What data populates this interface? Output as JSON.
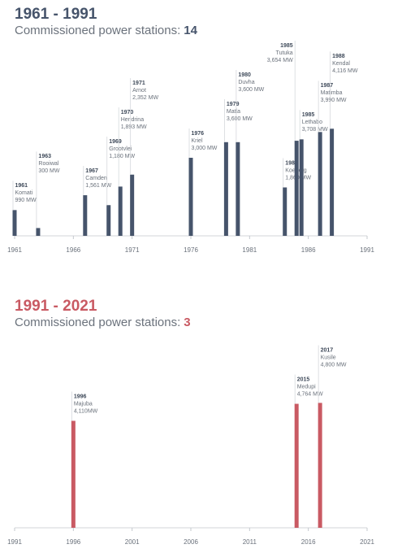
{
  "chart_data": [
    {
      "type": "bar",
      "title": "1961 - 1991",
      "subtitle": "Commissioned power stations:",
      "count": 14,
      "color": "#46546b",
      "x": [
        1961,
        1963,
        1967,
        1969,
        1970,
        1971,
        1976,
        1979,
        1980,
        1984,
        1985,
        1985,
        1987,
        1988
      ],
      "names": [
        "Komati",
        "Rooiwal",
        "Camden",
        "Grootvlei",
        "Hendrina",
        "Arnot",
        "Kriel",
        "Matla",
        "Duvha",
        "Koeberg",
        "Tutuka",
        "Lethabo",
        "Matimba",
        "Kendal"
      ],
      "values": [
        990,
        300,
        1561,
        1180,
        1893,
        2352,
        3000,
        3600,
        3600,
        1860,
        3654,
        3708,
        3990,
        4116
      ],
      "value_labels": [
        "990 MW",
        "300 MW",
        "1,561 MW",
        "1,180 MW",
        "1,893 MW",
        "2,352 MW",
        "3,000 MW",
        "3,600 MW",
        "3,600 MW",
        "1,860 MW",
        "3,654 MW",
        "3,708 MW",
        "3,990 MW",
        "4,116 MW"
      ],
      "xlim": [
        1961,
        1991
      ],
      "xticks": [
        1961,
        1966,
        1971,
        1976,
        1981,
        1986,
        1991
      ]
    },
    {
      "type": "bar",
      "title": "1991 - 2021",
      "subtitle": "Commissioned power stations:",
      "count": 3,
      "color": "#c95a63",
      "x": [
        1996,
        2015,
        2017
      ],
      "names": [
        "Majuba",
        "Medupi",
        "Kusile"
      ],
      "values": [
        4110,
        4764,
        4800
      ],
      "value_labels": [
        "4,110MW",
        "4,764 MW",
        "4,800 MW"
      ],
      "xlim": [
        1991,
        2021
      ],
      "xticks": [
        1991,
        1996,
        2001,
        2006,
        2011,
        2016,
        2021
      ]
    }
  ]
}
